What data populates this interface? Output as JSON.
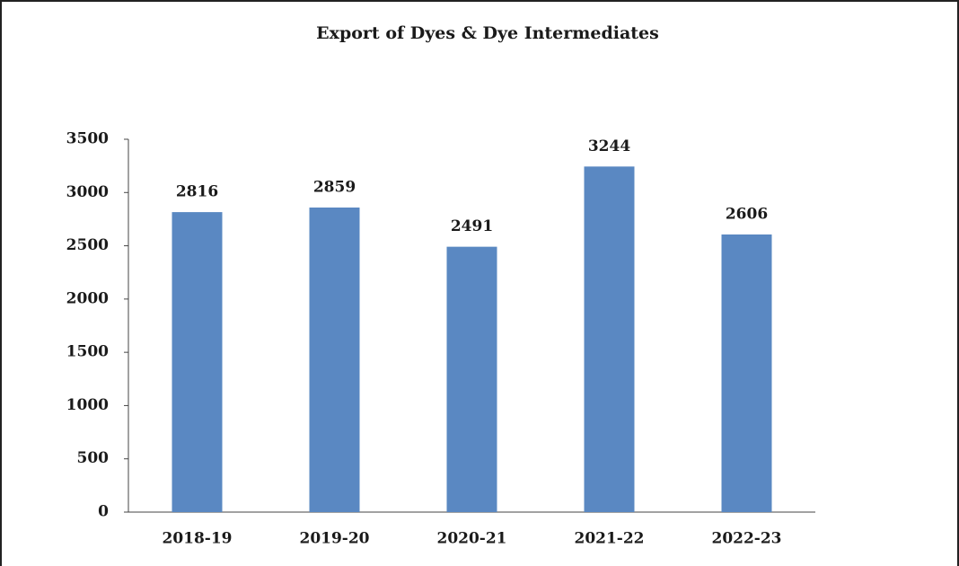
{
  "chart_data": {
    "type": "bar",
    "title": "Export of Dyes & Dye Intermediates",
    "categories": [
      "2018-19",
      "2019-20",
      "2020-21",
      "2021-22",
      "2022-23"
    ],
    "values": [
      2816,
      2859,
      2491,
      3244,
      2606
    ],
    "color": "#5a88c2",
    "ylim": [
      0,
      3500
    ],
    "yticks": [
      0,
      500,
      1000,
      1500,
      2000,
      2500,
      3000,
      3500
    ],
    "grid": false
  }
}
